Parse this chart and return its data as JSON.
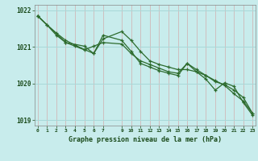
{
  "title": "Graphe pression niveau de la mer (hPa)",
  "bg_color": "#c8ecec",
  "plot_bg_color": "#c8ecec",
  "line_color": "#2d6b2d",
  "grid_color_h": "#a8d8d8",
  "grid_color_v": "#d0b8b8",
  "series1_x": [
    0,
    1,
    2,
    3,
    4,
    5,
    6,
    7,
    9,
    10,
    11,
    12,
    13,
    14,
    15,
    16,
    17,
    18,
    19,
    20,
    21,
    22,
    23
  ],
  "series1_y": [
    1021.85,
    1021.6,
    1021.38,
    1021.18,
    1021.05,
    1020.93,
    1020.82,
    1021.22,
    1021.42,
    1021.18,
    1020.88,
    1020.62,
    1020.52,
    1020.45,
    1020.38,
    1020.38,
    1020.32,
    1020.22,
    1020.05,
    1019.97,
    1019.82,
    1019.62,
    1019.18
  ],
  "series2_x": [
    0,
    1,
    2,
    3,
    4,
    5,
    6,
    7,
    9,
    10,
    11,
    12,
    13,
    14,
    15,
    16,
    17,
    18,
    19,
    20,
    21,
    22,
    23
  ],
  "series2_y": [
    1021.85,
    1021.6,
    1021.32,
    1021.12,
    1021.02,
    1020.92,
    1021.02,
    1021.12,
    1021.08,
    1020.82,
    1020.62,
    1020.52,
    1020.42,
    1020.32,
    1020.28,
    1020.55,
    1020.38,
    1020.22,
    1020.08,
    1019.95,
    1019.72,
    1019.52,
    1019.18
  ],
  "series3_x": [
    0,
    3,
    5,
    6,
    7,
    9,
    10,
    11,
    12,
    13,
    14,
    15,
    16,
    17,
    18,
    19,
    20,
    21,
    22,
    23
  ],
  "series3_y": [
    1021.85,
    1021.12,
    1021.02,
    1020.82,
    1021.32,
    1021.18,
    1020.88,
    1020.55,
    1020.45,
    1020.35,
    1020.28,
    1020.22,
    1020.55,
    1020.32,
    1020.12,
    1019.82,
    1020.02,
    1019.92,
    1019.48,
    1019.13
  ],
  "ylim": [
    1018.85,
    1022.15
  ],
  "yticks": [
    1019,
    1020,
    1021,
    1022
  ],
  "xticks": [
    0,
    1,
    2,
    3,
    4,
    5,
    6,
    7,
    9,
    10,
    11,
    12,
    13,
    14,
    15,
    16,
    17,
    18,
    19,
    20,
    21,
    22,
    23
  ],
  "xlim": [
    -0.3,
    23.3
  ]
}
